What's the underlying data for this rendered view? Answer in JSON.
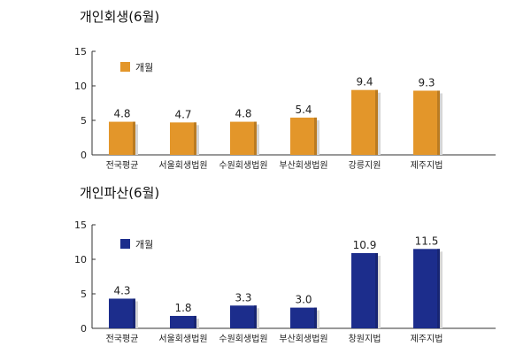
{
  "chart_data": [
    {
      "type": "bar",
      "title": "개인회생(6월)",
      "legend": "개월",
      "legend_position": "top-left",
      "color": "#E3962A",
      "categories": [
        "전국평균",
        "서울회생법원",
        "수원회생법원",
        "부산회생법원",
        "강릉지원",
        "제주지법"
      ],
      "values": [
        4.8,
        4.7,
        4.8,
        5.4,
        9.4,
        9.3
      ],
      "data_labels": [
        "4.8",
        "4.7",
        "4.8",
        "5.4",
        "9.4",
        "9.3"
      ],
      "yticks": [
        "0",
        "5",
        "10",
        "15"
      ],
      "ylim": [
        0,
        15
      ],
      "xlabel": "",
      "ylabel": "",
      "grid": false
    },
    {
      "type": "bar",
      "title": "개인파산(6월)",
      "legend": "개월",
      "legend_position": "top-left",
      "color": "#1C2D8C",
      "categories": [
        "전국평균",
        "서울회생법원",
        "수원회생법원",
        "부산회생법원",
        "창원지법",
        "제주지법"
      ],
      "values": [
        4.3,
        1.8,
        3.3,
        3.0,
        10.9,
        11.5
      ],
      "data_labels": [
        "4.3",
        "1.8",
        "3.3",
        "3.0",
        "10.9",
        "11.5"
      ],
      "yticks": [
        "0",
        "5",
        "10",
        "15"
      ],
      "ylim": [
        0,
        15
      ],
      "xlabel": "",
      "ylabel": "",
      "grid": false
    }
  ]
}
